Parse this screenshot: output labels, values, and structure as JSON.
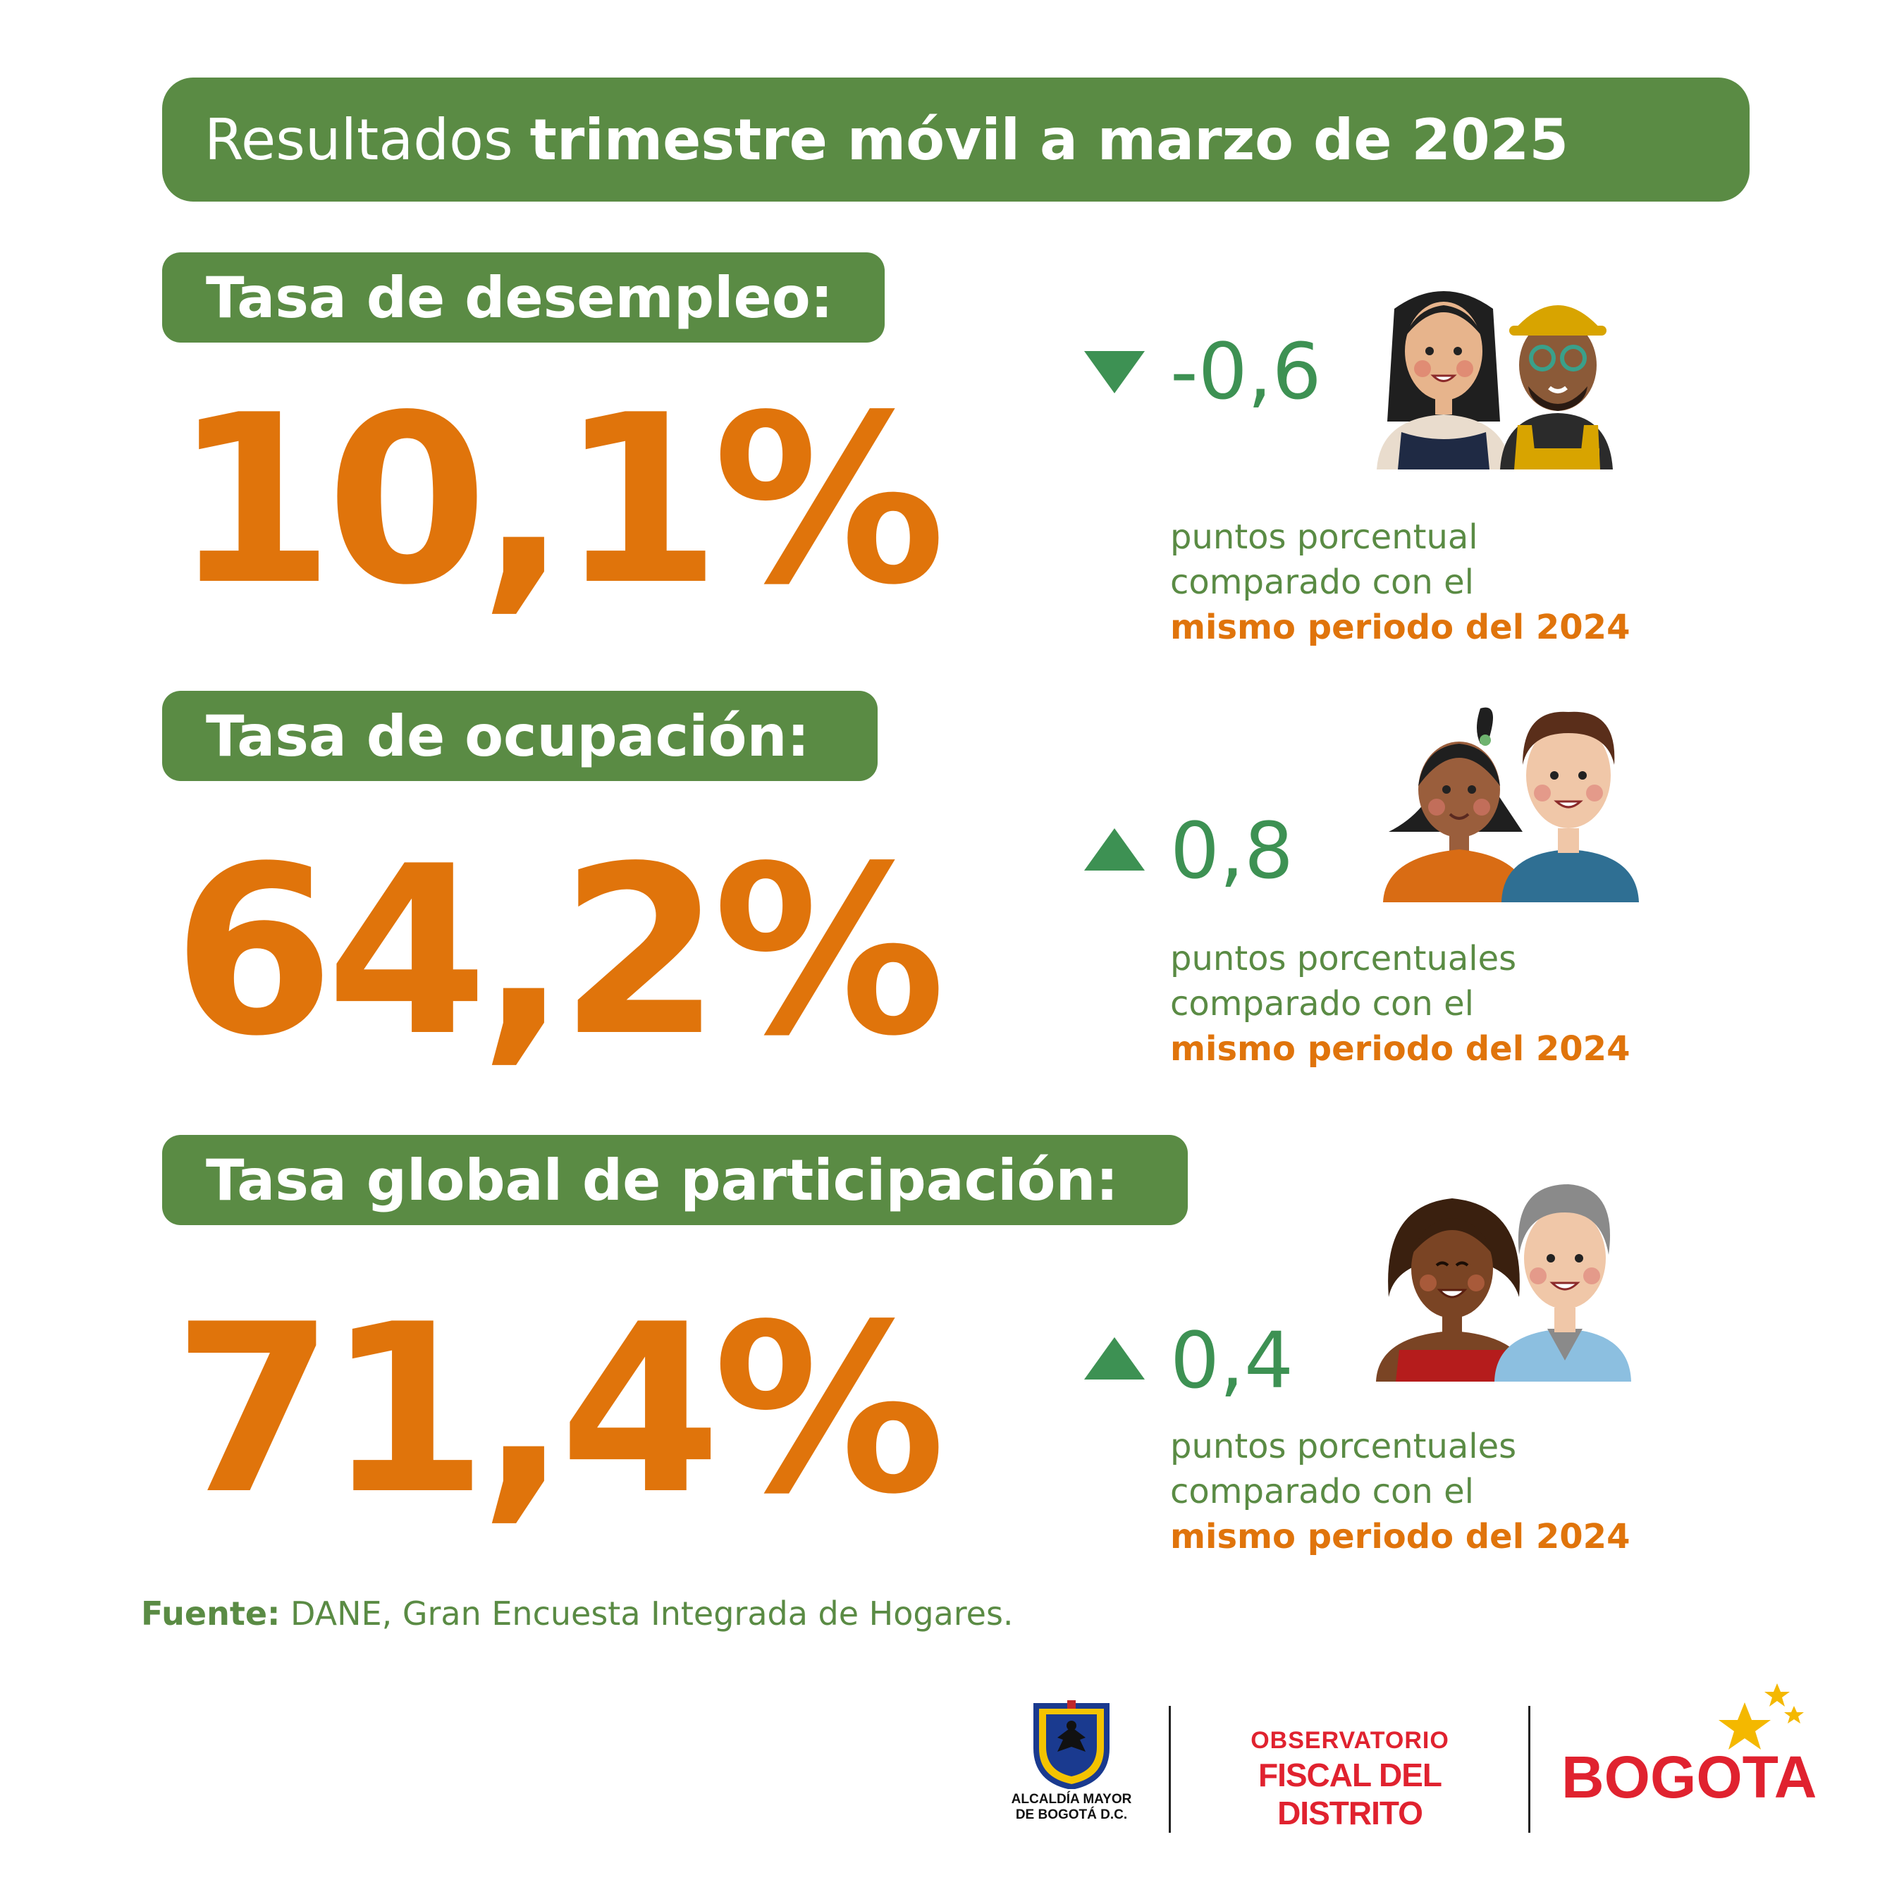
{
  "title": {
    "light": "Resultados",
    "bold": "trimestre móvil a marzo de 2025"
  },
  "sections": [
    {
      "label": "Tasa de desempleo:",
      "value": "10,1%",
      "direction": "down",
      "delta": "-0,6",
      "desc_line1": "puntos porcentual",
      "desc_line2": "comparado con el",
      "desc_line3": "mismo periodo del 2024"
    },
    {
      "label": "Tasa de ocupación:",
      "value": "64,2%",
      "direction": "up",
      "delta": "0,8",
      "desc_line1": "puntos porcentuales",
      "desc_line2": "comparado con el",
      "desc_line3": "mismo periodo del 2024"
    },
    {
      "label": "Tasa global de participación:",
      "value": "71,4%",
      "direction": "up",
      "delta": "0,4",
      "desc_line1": "puntos porcentuales",
      "desc_line2": "comparado con el",
      "desc_line3": "mismo periodo del 2024"
    }
  ],
  "source": {
    "label": "Fuente:",
    "text": "DANE, Gran Encuesta Integrada de Hogares."
  },
  "footer": {
    "alcaldia_line1": "ALCALDÍA MAYOR",
    "alcaldia_line2": "DE BOGOTÁ D.C.",
    "observatorio_line1": "OBSERVATORIO",
    "observatorio_line2": "FISCAL DEL DISTRITO",
    "bogota_logo_text": "BOGOTA"
  },
  "colors": {
    "green_bar": "#5a8b44",
    "orange": "#e0740b",
    "delta_green": "#3d9153",
    "brand_red": "#e0222f"
  }
}
